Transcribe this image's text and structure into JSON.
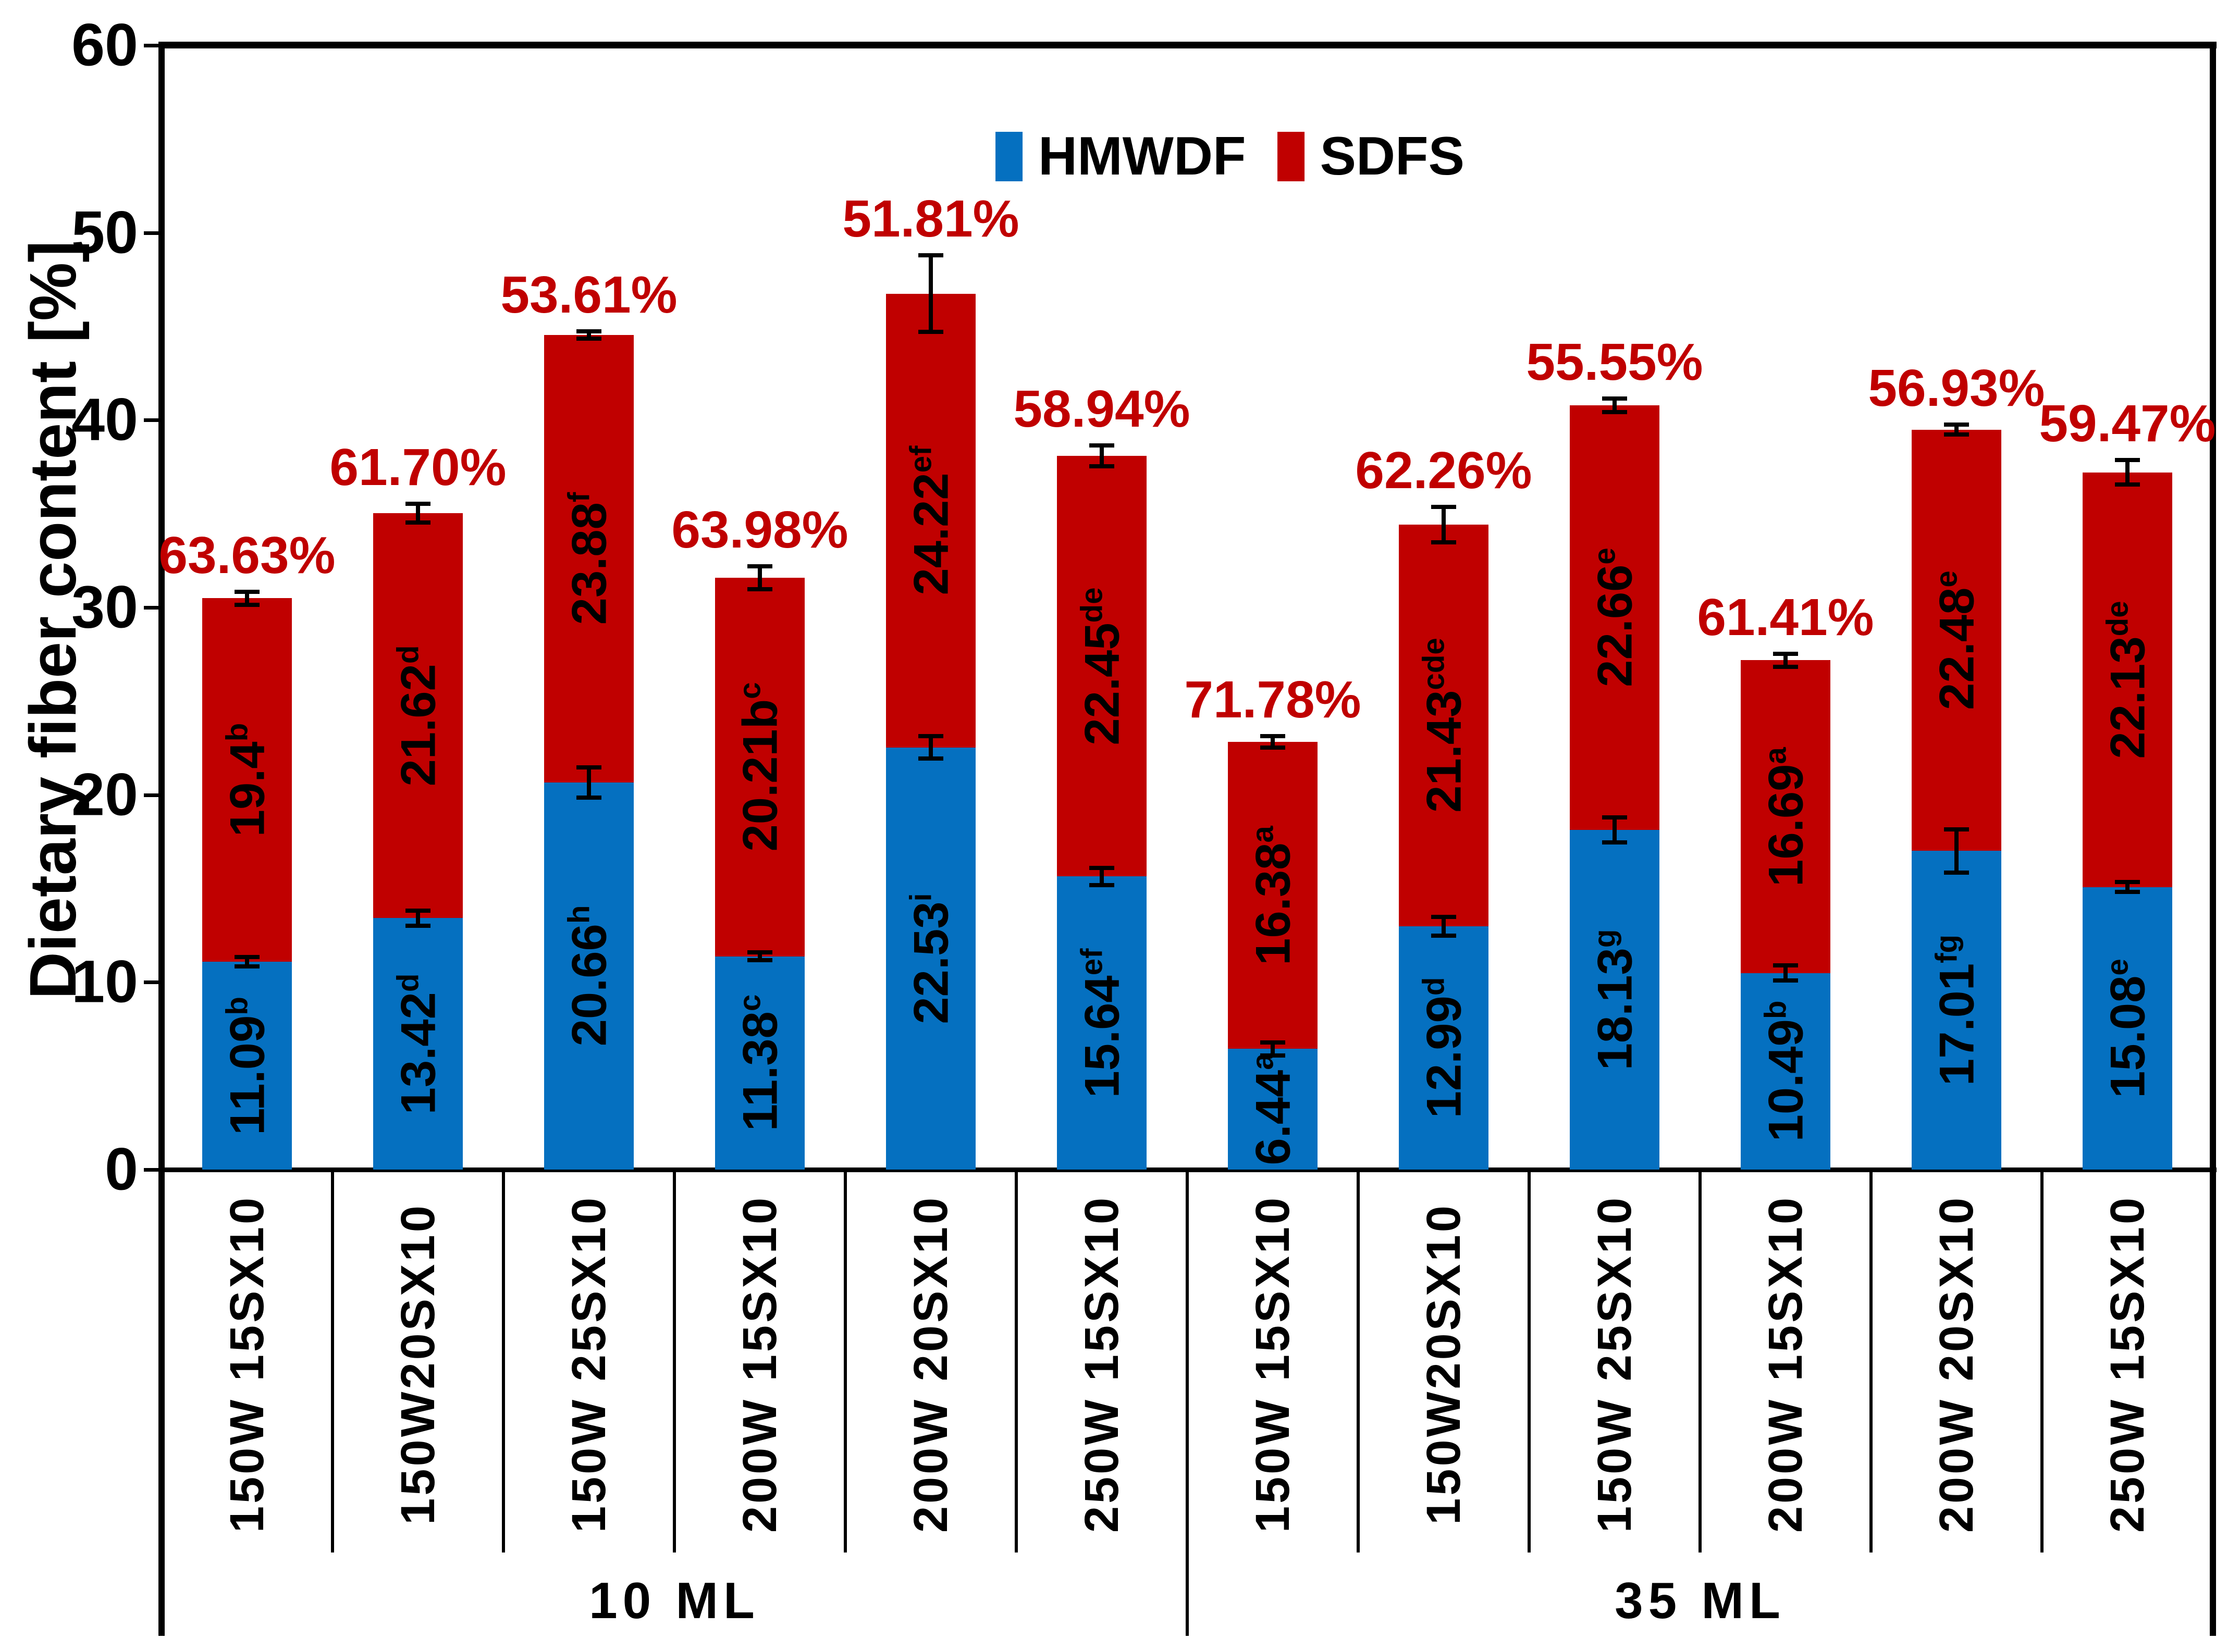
{
  "chart_data": {
    "type": "bar",
    "stacked": true,
    "title": "",
    "ylabel": "Dietary fiber content [%]",
    "xlabel": "",
    "ylim": [
      0,
      60
    ],
    "yticks": [
      0,
      10,
      20,
      30,
      40,
      50,
      60
    ],
    "grid": false,
    "legend_position": "top-center",
    "annotation_color": "#C00000",
    "axis_color": "#000000",
    "categories": [
      "150W 15SX10",
      "150W20SX10",
      "150W 25SX10",
      "200W 15SX10",
      "200W 20SX10",
      "250W 15SX10",
      "150W 15SX10",
      "150W20SX10",
      "150W 25SX10",
      "200W 15SX10",
      "200W 20SX10",
      "250W 15SX10"
    ],
    "group_labels": [
      "10 ML",
      "35 ML"
    ],
    "group_split_index": 6,
    "series": [
      {
        "name": "HMWDF",
        "color": "#0570C0",
        "values": [
          11.09,
          13.42,
          20.66,
          11.38,
          22.53,
          15.64,
          6.44,
          12.99,
          18.13,
          10.49,
          17.01,
          15.08
        ],
        "label_text": [
          "11.09",
          "13.42",
          "20.66",
          "11.38",
          "22.53",
          "15.64",
          "6.44",
          "12.99",
          "18.13",
          "10.49",
          "17.01",
          "15.08"
        ],
        "label_sup": [
          "b",
          "d",
          "h",
          "c",
          "i",
          "ef",
          "a",
          "d",
          "g",
          "b",
          "fg",
          "e"
        ],
        "errors": [
          0.2,
          0.35,
          0.75,
          0.15,
          0.55,
          0.4,
          0.3,
          0.45,
          0.6,
          0.35,
          1.1,
          0.2
        ]
      },
      {
        "name": "SDFS",
        "color": "#C00000",
        "values": [
          19.4,
          21.62,
          23.88,
          20.21,
          24.22,
          22.45,
          16.38,
          21.43,
          22.66,
          16.69,
          22.48,
          22.13
        ],
        "label_text": [
          "19.4",
          "21.62",
          "23.88",
          "20.21b",
          "24.22",
          "22.45",
          "16.38",
          "21.43",
          "22.66",
          "16.69",
          "22.48",
          "22.13"
        ],
        "label_sup": [
          "b",
          "d",
          "f",
          "c",
          "ef",
          "de",
          "a",
          "cde",
          "e",
          "a",
          "e",
          "de"
        ],
        "total_errors": [
          0.3,
          0.45,
          0.15,
          0.55,
          2.0,
          0.5,
          0.25,
          0.9,
          0.3,
          0.3,
          0.2,
          0.6
        ]
      }
    ],
    "stack_totals": [
      30.49,
      35.04,
      44.54,
      31.59,
      46.75,
      38.09,
      22.82,
      34.42,
      40.79,
      27.18,
      39.49,
      37.21
    ],
    "sdfs_percent_labels": [
      "63.63%",
      "61.70%",
      "53.61%",
      "63.98%",
      "51.81%",
      "58.94%",
      "71.78%",
      "62.26%",
      "55.55%",
      "61.41%",
      "56.93%",
      "59.47%"
    ]
  }
}
